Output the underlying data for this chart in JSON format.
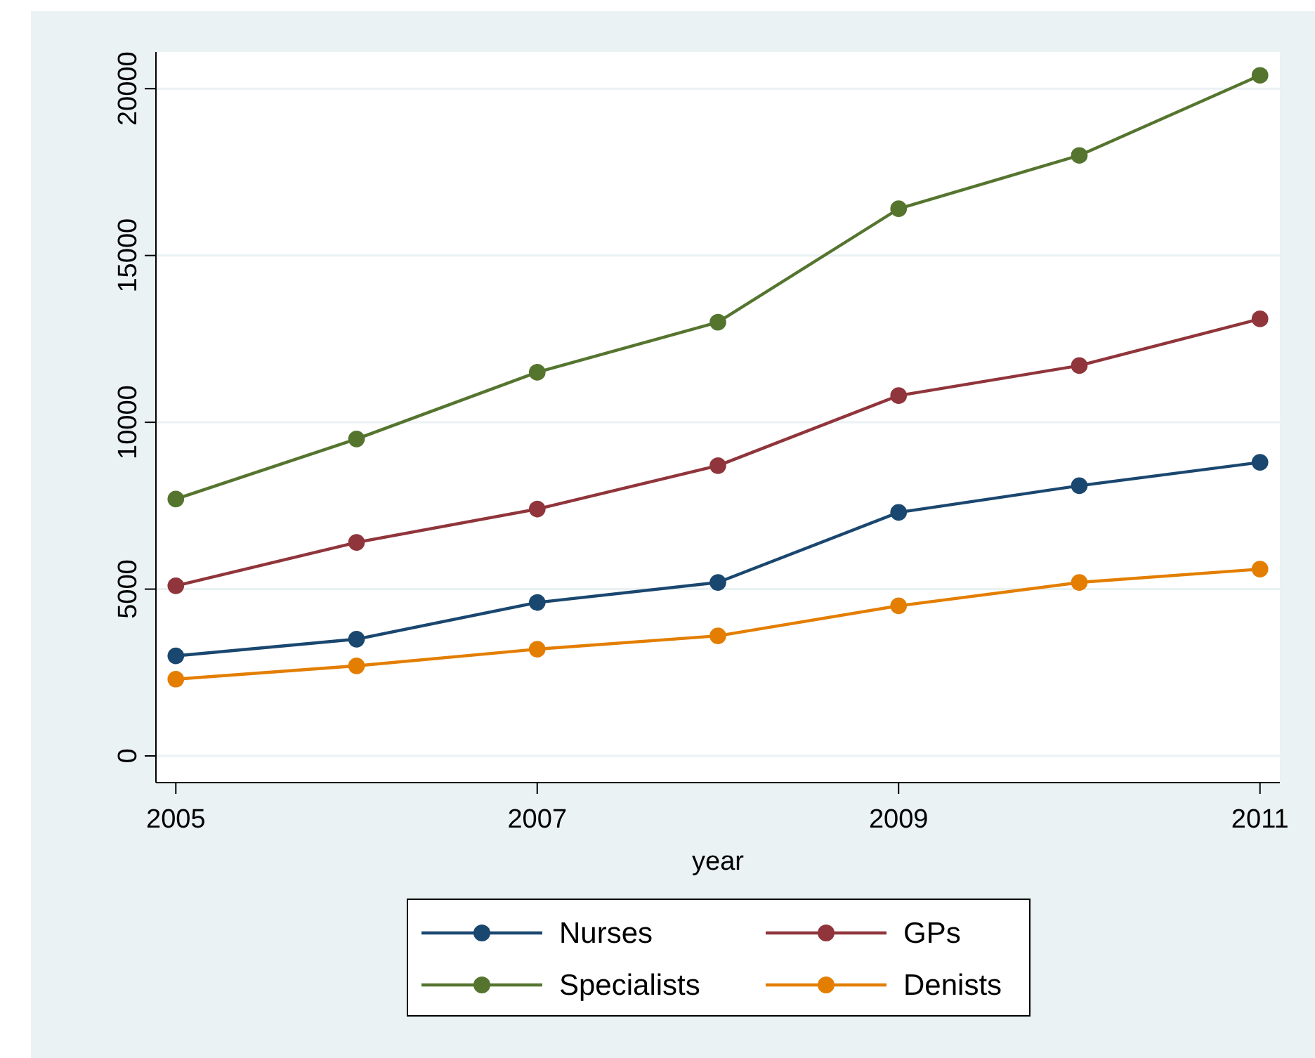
{
  "chart_data": {
    "type": "line",
    "xlabel": "year",
    "x": [
      2005,
      2006,
      2007,
      2008,
      2009,
      2010,
      2011
    ],
    "xlim": [
      2004.89,
      2011.11
    ],
    "xticks": [
      2005,
      2007,
      2009,
      2011
    ],
    "ylim": [
      -800,
      21100
    ],
    "yticks": [
      0,
      5000,
      10000,
      15000,
      20000
    ],
    "grid": "y",
    "legend": "bottom",
    "marker": "circle",
    "line_style": "solid",
    "series": [
      {
        "name": "Nurses",
        "color": "#1a476f",
        "values": [
          3000,
          3500,
          4600,
          5200,
          7300,
          8100,
          8800
        ]
      },
      {
        "name": "GPs",
        "color": "#90353b",
        "values": [
          5100,
          6400,
          7400,
          8700,
          10800,
          11700,
          13100
        ]
      },
      {
        "name": "Specialists",
        "color": "#55752f",
        "values": [
          7700,
          9500,
          11500,
          13000,
          16400,
          18000,
          20400
        ]
      },
      {
        "name": "Denists",
        "color": "#e37e00",
        "values": [
          2300,
          2700,
          3200,
          3600,
          4500,
          5200,
          5600
        ]
      }
    ]
  }
}
